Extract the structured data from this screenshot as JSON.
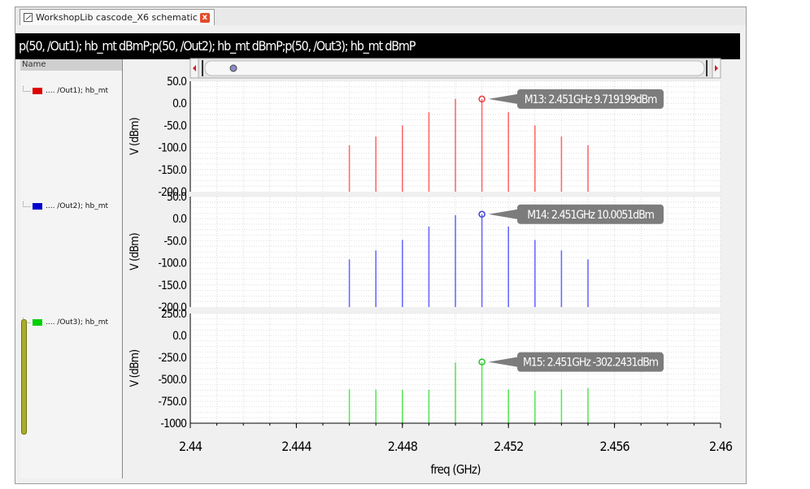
{
  "window": {
    "tab_title": "WorkshopLib cascode_X6 schematic",
    "tab_close": "x",
    "plot_title": "p(50, /Out1); hb_mt dBmP;p(50, /Out2); hb_mt dBmP;p(50, /Out3); hb_mt dBmP"
  },
  "sidebar": {
    "header": "Name",
    "items": [
      {
        "label": ".... /Out1); hb_mt",
        "color": "#e00000"
      },
      {
        "label": ".... /Out2); hb_mt",
        "color": "#0000d0"
      },
      {
        "label": ".... /Out3); hb_mt",
        "color": "#00d000"
      }
    ]
  },
  "chart_data": [
    {
      "type": "bar",
      "ylabel": "V (dBm)",
      "ylim": [
        -200,
        50
      ],
      "yticks": [
        "50.0",
        "0.0",
        "-50.0",
        "-100.0",
        "-150.0",
        "-200.0"
      ],
      "color": "#ff6a6a",
      "x": [
        2.446,
        2.447,
        2.448,
        2.449,
        2.45,
        2.451,
        2.452,
        2.453,
        2.454,
        2.455
      ],
      "values": [
        -95,
        -75,
        -50,
        -20,
        10,
        9.719,
        -20,
        -50,
        -75,
        -95
      ],
      "marker": {
        "label": "M13: 2.451GHz 9.719199dBm",
        "x": 2.451,
        "y": 9.719
      }
    },
    {
      "type": "bar",
      "ylabel": "V (dBm)",
      "ylim": [
        -200,
        50
      ],
      "yticks": [
        "50.0",
        "0.0",
        "-50.0",
        "-100.0",
        "-150.0",
        "-200.0"
      ],
      "color": "#6a6aff",
      "x": [
        2.446,
        2.447,
        2.448,
        2.449,
        2.45,
        2.451,
        2.452,
        2.453,
        2.454,
        2.455
      ],
      "values": [
        -92,
        -72,
        -48,
        -18,
        8,
        10.0051,
        -18,
        -48,
        -72,
        -92
      ],
      "marker": {
        "label": "M14: 2.451GHz 10.0051dBm",
        "x": 2.451,
        "y": 10.0051
      }
    },
    {
      "type": "bar",
      "ylabel": "V (dBm)",
      "ylim": [
        -1000,
        250
      ],
      "yticks": [
        "250.0",
        "0.0",
        "-250.0",
        "-500.0",
        "-750.0",
        "-1000"
      ],
      "color": "#5ae85a",
      "x": [
        2.446,
        2.447,
        2.448,
        2.449,
        2.45,
        2.451,
        2.452,
        2.453,
        2.454,
        2.455
      ],
      "values": [
        -610,
        -615,
        -620,
        -620,
        -310,
        -302.2431,
        -615,
        -630,
        -615,
        -600
      ],
      "marker": {
        "label": "M15: 2.451GHz -302.2431dBm",
        "x": 2.451,
        "y": -302.2431
      }
    }
  ],
  "xaxis": {
    "label": "freq (GHz)",
    "ticks": [
      "2.44",
      "2.444",
      "2.448",
      "2.452",
      "2.456",
      "2.46"
    ],
    "xlim": [
      2.44,
      2.46
    ]
  }
}
